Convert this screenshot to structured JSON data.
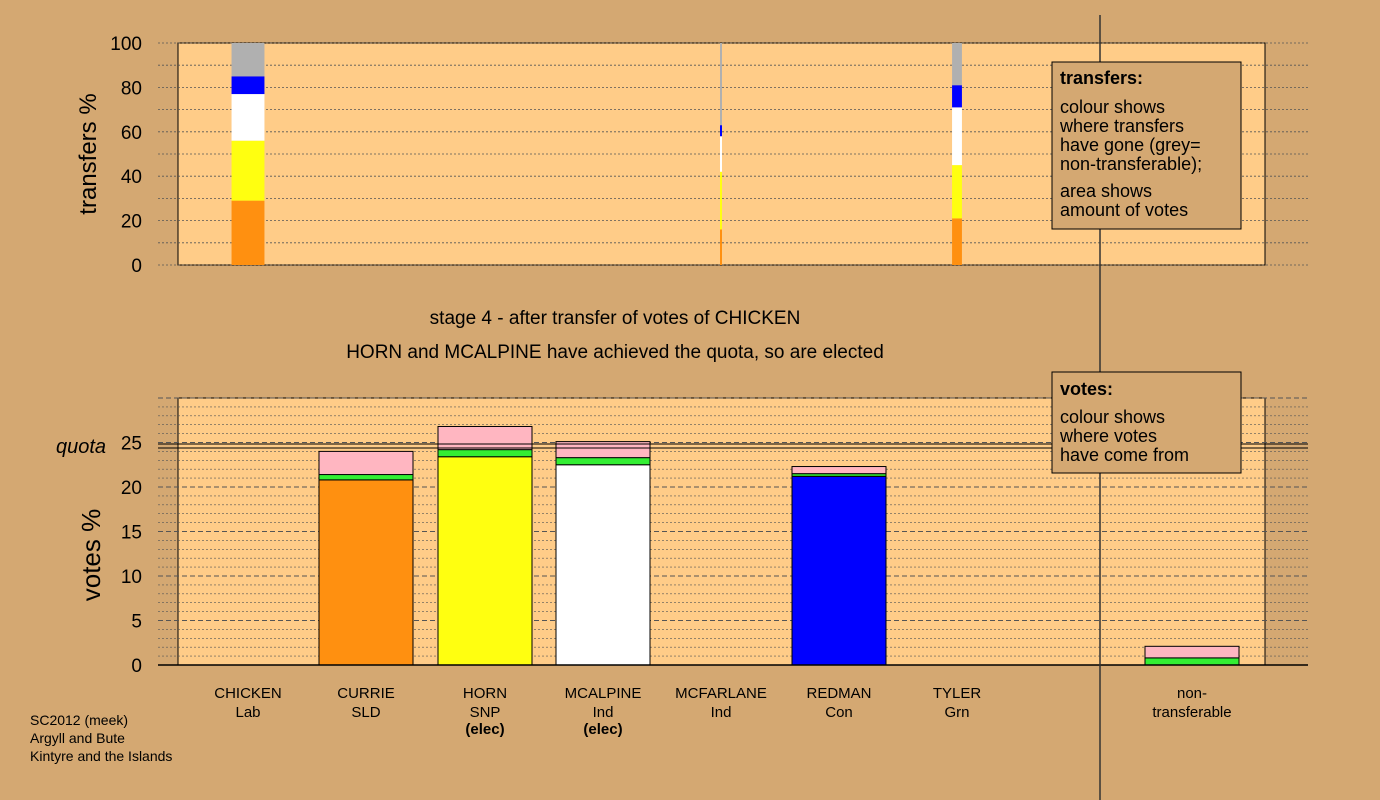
{
  "stage_title": "stage 4 - after transfer of votes of CHICKEN",
  "stage_subtitle": "HORN and MCALPINE have achieved the quota, so are elected",
  "footer": {
    "line1": "SC2012 (meek)",
    "line2": "Argyll and Bute",
    "line3": "Kintyre and the Islands"
  },
  "legend_transfers": {
    "title": "transfers:",
    "lines": [
      "colour shows",
      "where transfers",
      "have gone (grey=",
      "non-transferable);"
    ],
    "lines2": [
      "area shows",
      "amount of votes"
    ]
  },
  "legend_votes": {
    "title": "votes:",
    "lines": [
      "colour shows",
      "where votes",
      "have come from"
    ]
  },
  "colors": {
    "background": "#d4a872",
    "plot_bg": "#ffcc88",
    "Lab": "#ffcc88",
    "SLD": "#ff9010",
    "SNP": "#ffff10",
    "Ind_McAlpine": "#ffffff",
    "Con": "#0000ff",
    "Green": "#33ee33",
    "transfers_pink": "#ffb6c1",
    "nontransferable": "#b0b0b0"
  },
  "chart_data": [
    {
      "type": "bar",
      "title": "",
      "xlabel": "",
      "ylabel": "transfers %",
      "ylim": [
        0,
        100
      ],
      "yticks": [
        0,
        20,
        40,
        60,
        80,
        100
      ],
      "grid": "dotted",
      "description_legend_position": "top-right",
      "columns": [
        {
          "label": "CHICKEN",
          "width_fraction": 1.0,
          "segments": [
            {
              "color": "SLD",
              "value": 29
            },
            {
              "color": "SNP",
              "value": 27
            },
            {
              "color": "Ind_McAlpine",
              "value": 21
            },
            {
              "color": "Con",
              "value": 8
            },
            {
              "color": "nontransferable",
              "value": 15
            }
          ]
        },
        {
          "label": "MCFARLANE",
          "width_fraction": 0.04,
          "segments": [
            {
              "color": "SLD",
              "value": 16
            },
            {
              "color": "SNP",
              "value": 26
            },
            {
              "color": "Ind_McAlpine",
              "value": 16
            },
            {
              "color": "Con",
              "value": 5
            },
            {
              "color": "nontransferable",
              "value": 37
            }
          ]
        },
        {
          "label": "TYLER",
          "width_fraction": 0.3,
          "segments": [
            {
              "color": "SLD",
              "value": 21
            },
            {
              "color": "SNP",
              "value": 24
            },
            {
              "color": "Ind_McAlpine",
              "value": 26
            },
            {
              "color": "Con",
              "value": 10
            },
            {
              "color": "nontransferable",
              "value": 19
            }
          ]
        }
      ]
    },
    {
      "type": "bar",
      "title": "",
      "xlabel": "",
      "ylabel": "votes %",
      "ylim": [
        0,
        30
      ],
      "yticks": [
        0,
        5,
        10,
        15,
        20,
        25
      ],
      "quota": 24.6,
      "quota_label": "quota",
      "legend_position": "top-right",
      "candidates": [
        {
          "name": "CHICKEN",
          "party": "Lab",
          "elected": false,
          "segments": []
        },
        {
          "name": "CURRIE",
          "party": "SLD",
          "elected": false,
          "segments": [
            {
              "color": "SLD",
              "value": 20.8
            },
            {
              "color": "Green",
              "value": 0.6
            },
            {
              "color": "transfers_pink",
              "value": 2.6
            }
          ]
        },
        {
          "name": "HORN",
          "party": "SNP",
          "elected": true,
          "segments": [
            {
              "color": "SNP",
              "value": 23.4
            },
            {
              "color": "Green",
              "value": 0.8
            },
            {
              "color": "transfers_pink",
              "value": 2.6
            }
          ]
        },
        {
          "name": "MCALPINE",
          "party": "Ind",
          "elected": true,
          "segments": [
            {
              "color": "Ind_McAlpine",
              "value": 22.5
            },
            {
              "color": "Green",
              "value": 0.8
            },
            {
              "color": "transfers_pink",
              "value": 1.8
            }
          ]
        },
        {
          "name": "MCFARLANE",
          "party": "Ind",
          "elected": false,
          "segments": []
        },
        {
          "name": "REDMAN",
          "party": "Con",
          "elected": false,
          "segments": [
            {
              "color": "Con",
              "value": 21.2
            },
            {
              "color": "Green",
              "value": 0.3
            },
            {
              "color": "transfers_pink",
              "value": 0.8
            }
          ]
        },
        {
          "name": "TYLER",
          "party": "Grn",
          "elected": false,
          "segments": []
        }
      ],
      "nontransferable": {
        "label_line1": "non-",
        "label_line2": "transferable",
        "segments": [
          {
            "color": "Green",
            "value": 0.8
          },
          {
            "color": "transfers_pink",
            "value": 1.3
          }
        ]
      },
      "elected_label": "(elec)"
    }
  ]
}
